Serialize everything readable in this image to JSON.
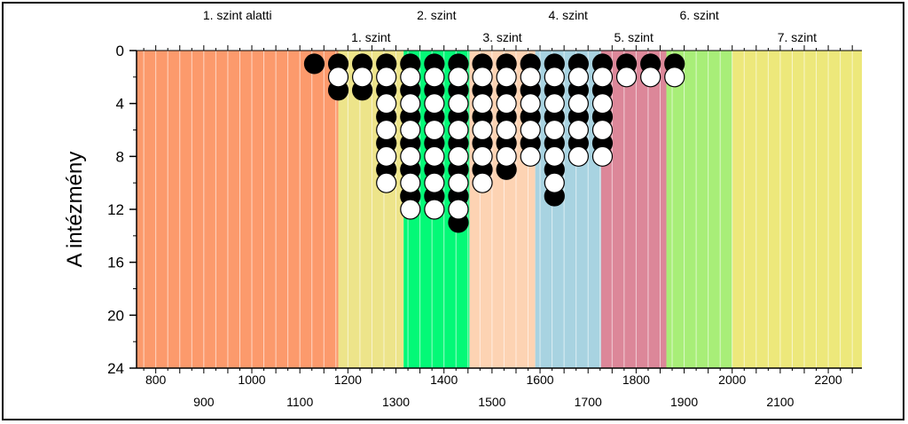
{
  "chart_data": {
    "type": "scatter",
    "ylabel": "A intézmény",
    "xlim": [
      760,
      2270
    ],
    "ylim": [
      24,
      0
    ],
    "x_ticks_top_row": [
      "800",
      "1000",
      "1200",
      "1400",
      "1600",
      "1800",
      "2000",
      "2200"
    ],
    "x_ticks_bottom_row": [
      "900",
      "1100",
      "1300",
      "1500",
      "1700",
      "1900",
      "2100"
    ],
    "y_ticks": [
      "0",
      "4",
      "8",
      "12",
      "16",
      "20",
      "24"
    ],
    "grid": "vertical minor lines every 25 units",
    "bands": [
      {
        "label": "1. szint alatti",
        "from": 760,
        "to": 1180,
        "color": "#fc9a6c",
        "label_row": "top"
      },
      {
        "label": "1. szint",
        "from": 1180,
        "to": 1316,
        "color": "#ede48a",
        "label_row": "lower"
      },
      {
        "label": "2. szint",
        "from": 1316,
        "to": 1453,
        "color": "#03f977",
        "label_row": "top"
      },
      {
        "label": "3. szint",
        "from": 1453,
        "to": 1590,
        "color": "#fdd3b3",
        "label_row": "lower"
      },
      {
        "label": "4. szint",
        "from": 1590,
        "to": 1727,
        "color": "#a8d3e1",
        "label_row": "top"
      },
      {
        "label": "5. szint",
        "from": 1727,
        "to": 1863,
        "color": "#dc8799",
        "label_row": "lower"
      },
      {
        "label": "6. szint",
        "from": 1863,
        "to": 2000,
        "color": "#a8ee78",
        "label_row": "top"
      },
      {
        "label": "7. szint",
        "from": 2000,
        "to": 2270,
        "color": "#ede87b",
        "label_row": "lower"
      }
    ],
    "series": [
      {
        "marker": "black",
        "points": [
          [
            1130,
            1
          ],
          [
            1180,
            1
          ],
          [
            1180,
            3
          ],
          [
            1230,
            1
          ],
          [
            1230,
            3
          ],
          [
            1280,
            1
          ],
          [
            1280,
            3
          ],
          [
            1280,
            5
          ],
          [
            1280,
            7
          ],
          [
            1280,
            9
          ],
          [
            1330,
            1
          ],
          [
            1330,
            3
          ],
          [
            1330,
            5
          ],
          [
            1330,
            7
          ],
          [
            1330,
            9
          ],
          [
            1330,
            11
          ],
          [
            1380,
            1
          ],
          [
            1380,
            3
          ],
          [
            1380,
            5
          ],
          [
            1380,
            7
          ],
          [
            1380,
            9
          ],
          [
            1380,
            11
          ],
          [
            1430,
            1
          ],
          [
            1430,
            3
          ],
          [
            1430,
            5
          ],
          [
            1430,
            7
          ],
          [
            1430,
            9
          ],
          [
            1430,
            11
          ],
          [
            1430,
            13
          ],
          [
            1480,
            1
          ],
          [
            1480,
            3
          ],
          [
            1480,
            5
          ],
          [
            1480,
            7
          ],
          [
            1480,
            9
          ],
          [
            1530,
            1
          ],
          [
            1530,
            3
          ],
          [
            1530,
            5
          ],
          [
            1530,
            7
          ],
          [
            1530,
            9
          ],
          [
            1580,
            1
          ],
          [
            1580,
            3
          ],
          [
            1580,
            5
          ],
          [
            1580,
            7
          ],
          [
            1630,
            1
          ],
          [
            1630,
            3
          ],
          [
            1630,
            5
          ],
          [
            1630,
            7
          ],
          [
            1630,
            9
          ],
          [
            1630,
            11
          ],
          [
            1680,
            1
          ],
          [
            1680,
            3
          ],
          [
            1680,
            5
          ],
          [
            1680,
            7
          ],
          [
            1730,
            1
          ],
          [
            1730,
            3
          ],
          [
            1730,
            5
          ],
          [
            1730,
            7
          ],
          [
            1780,
            1
          ],
          [
            1830,
            1
          ],
          [
            1880,
            1
          ]
        ]
      },
      {
        "marker": "white",
        "points": [
          [
            1180,
            2
          ],
          [
            1230,
            2
          ],
          [
            1280,
            2
          ],
          [
            1280,
            4
          ],
          [
            1280,
            6
          ],
          [
            1280,
            8
          ],
          [
            1280,
            10
          ],
          [
            1330,
            2
          ],
          [
            1330,
            4
          ],
          [
            1330,
            6
          ],
          [
            1330,
            8
          ],
          [
            1330,
            10
          ],
          [
            1330,
            12
          ],
          [
            1380,
            2
          ],
          [
            1380,
            4
          ],
          [
            1380,
            6
          ],
          [
            1380,
            8
          ],
          [
            1380,
            10
          ],
          [
            1380,
            12
          ],
          [
            1430,
            2
          ],
          [
            1430,
            4
          ],
          [
            1430,
            6
          ],
          [
            1430,
            8
          ],
          [
            1430,
            10
          ],
          [
            1430,
            12
          ],
          [
            1480,
            2
          ],
          [
            1480,
            4
          ],
          [
            1480,
            6
          ],
          [
            1480,
            8
          ],
          [
            1480,
            10
          ],
          [
            1530,
            2
          ],
          [
            1530,
            4
          ],
          [
            1530,
            6
          ],
          [
            1530,
            8
          ],
          [
            1580,
            2
          ],
          [
            1580,
            4
          ],
          [
            1580,
            6
          ],
          [
            1580,
            8
          ],
          [
            1630,
            2
          ],
          [
            1630,
            4
          ],
          [
            1630,
            6
          ],
          [
            1630,
            8
          ],
          [
            1630,
            10
          ],
          [
            1680,
            2
          ],
          [
            1680,
            4
          ],
          [
            1680,
            6
          ],
          [
            1680,
            8
          ],
          [
            1730,
            2
          ],
          [
            1730,
            4
          ],
          [
            1730,
            6
          ],
          [
            1730,
            8
          ],
          [
            1780,
            2
          ],
          [
            1830,
            2
          ],
          [
            1880,
            2
          ]
        ]
      }
    ]
  }
}
